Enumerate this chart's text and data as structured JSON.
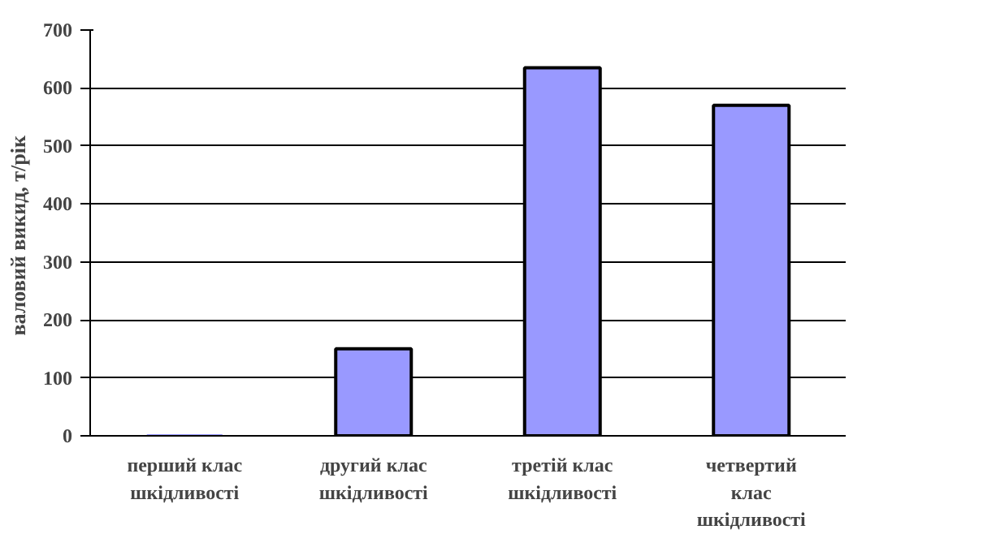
{
  "chart_data": {
    "type": "bar",
    "ylabel": "валовий викид,  т/рік",
    "categories": [
      "перший клас шкідливості",
      "другий клас шкідливості",
      "третій клас шкідливості",
      "четвертий клас шкідливості"
    ],
    "values": [
      0,
      150,
      635,
      570
    ],
    "color": "#9999ff",
    "ylim": [
      0,
      700
    ],
    "yticks": [
      0,
      100,
      200,
      300,
      400,
      500,
      600,
      700
    ],
    "grid": "y"
  }
}
